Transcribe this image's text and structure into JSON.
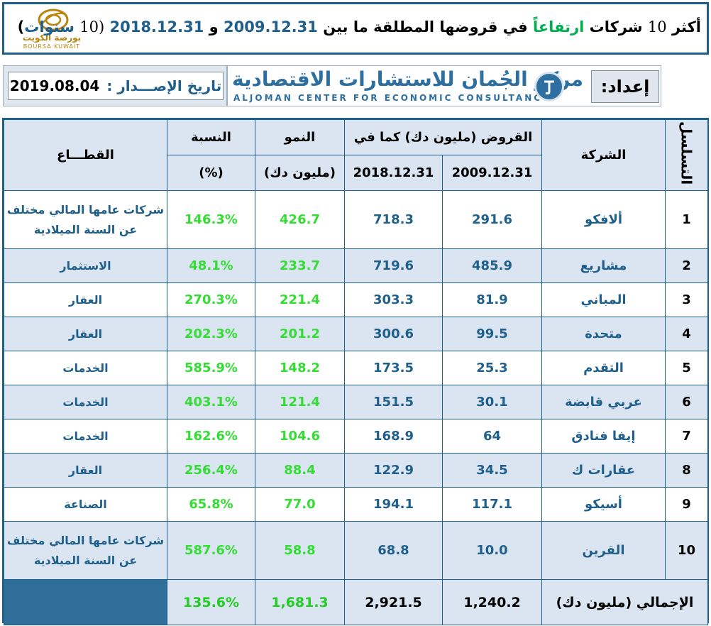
{
  "title": {
    "part1": "أكثر",
    "num_top": "10",
    "part2": "شركات",
    "rising": "ارتفاعاً",
    "part3": "في قروضها المطلقة ما بين",
    "date_from": "2009.12.31",
    "and": "و",
    "date_to": "2018.12.31",
    "years_open": "(10",
    "years_word": "سنوات",
    "years_close": ")"
  },
  "logo": {
    "arabic": "بورصة الكويت",
    "english": "BOURSA KUWAIT"
  },
  "issue": {
    "label": "تاريخ الإصـــدار :",
    "date": "2019.08.04"
  },
  "prepared": {
    "label": "إعداد:",
    "center_ar": "مركز الجُمان للاستشارات الاقتصادية",
    "center_en": "ALJOMAN CENTER FOR ECONOMIC CONSULTANCY"
  },
  "table": {
    "headers": {
      "serial": "التسلسل",
      "company": "الشركة",
      "loans": "القروض (مليون دك) كما في",
      "date_2009": "2009.12.31",
      "date_2018": "2018.12.31",
      "growth": "النمو",
      "growth_unit": "(مليون دك)",
      "ratio": "النسبة",
      "ratio_unit": "(%)",
      "sector": "القطـــاع"
    },
    "rows": [
      {
        "serial": "1",
        "company": "ألافكو",
        "loans_2009": "291.6",
        "loans_2018": "718.3",
        "growth": "426.7",
        "ratio": "146.3%",
        "sector_l1": "شركات عامها المالي مختلف",
        "sector_l2": "عن السنة الميلادية"
      },
      {
        "serial": "2",
        "company": "مشاريع",
        "loans_2009": "485.9",
        "loans_2018": "719.6",
        "growth": "233.7",
        "ratio": "48.1%",
        "sector_l1": "الاستثمار",
        "sector_l2": ""
      },
      {
        "serial": "3",
        "company": "المباني",
        "loans_2009": "81.9",
        "loans_2018": "303.3",
        "growth": "221.4",
        "ratio": "270.3%",
        "sector_l1": "العقار",
        "sector_l2": ""
      },
      {
        "serial": "4",
        "company": "متحدة",
        "loans_2009": "99.5",
        "loans_2018": "300.6",
        "growth": "201.2",
        "ratio": "202.3%",
        "sector_l1": "العقار",
        "sector_l2": ""
      },
      {
        "serial": "5",
        "company": "التقدم",
        "loans_2009": "25.3",
        "loans_2018": "173.5",
        "growth": "148.2",
        "ratio": "585.9%",
        "sector_l1": "الخدمات",
        "sector_l2": ""
      },
      {
        "serial": "6",
        "company": "عربي قابضة",
        "loans_2009": "30.1",
        "loans_2018": "151.5",
        "growth": "121.4",
        "ratio": "403.1%",
        "sector_l1": "الخدمات",
        "sector_l2": ""
      },
      {
        "serial": "7",
        "company": "إيفا فنادق",
        "loans_2009": "64",
        "loans_2018": "168.9",
        "growth": "104.6",
        "ratio": "162.6%",
        "sector_l1": "الخدمات",
        "sector_l2": ""
      },
      {
        "serial": "8",
        "company": "عقارات ك",
        "loans_2009": "34.5",
        "loans_2018": "122.9",
        "growth": "88.4",
        "ratio": "256.4%",
        "sector_l1": "العقار",
        "sector_l2": ""
      },
      {
        "serial": "9",
        "company": "أسيكو",
        "loans_2009": "117.1",
        "loans_2018": "194.1",
        "growth": "77.0",
        "ratio": "65.8%",
        "sector_l1": "الصناعة",
        "sector_l2": ""
      },
      {
        "serial": "10",
        "company": "القرين",
        "loans_2009": "10.0",
        "loans_2018": "68.8",
        "growth": "58.8",
        "ratio": "587.6%",
        "sector_l1": "شركات عامها المالي مختلف",
        "sector_l2": "عن السنة الميلادية"
      }
    ],
    "total": {
      "label": "الإجمالي (مليون دك)",
      "loans_2009": "1,240.2",
      "loans_2018": "2,921.5",
      "growth": "1,681.3",
      "ratio": "135.6%"
    }
  },
  "colors": {
    "accent_blue": "#1f5f8b",
    "row_alt": "#dbe5f1",
    "green_text": "#33dd33",
    "total_sector_fill": "#2e6e99"
  }
}
